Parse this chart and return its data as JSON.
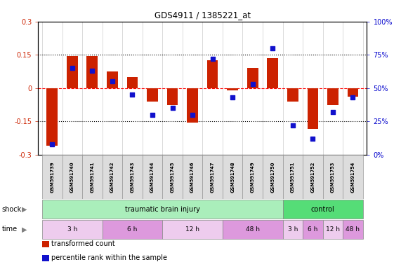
{
  "title": "GDS4911 / 1385221_at",
  "samples": [
    "GSM591739",
    "GSM591740",
    "GSM591741",
    "GSM591742",
    "GSM591743",
    "GSM591744",
    "GSM591745",
    "GSM591746",
    "GSM591747",
    "GSM591748",
    "GSM591749",
    "GSM591750",
    "GSM591751",
    "GSM591752",
    "GSM591753",
    "GSM591754"
  ],
  "bar_values": [
    -0.26,
    0.145,
    0.145,
    0.075,
    0.05,
    -0.06,
    -0.075,
    -0.155,
    0.125,
    -0.01,
    0.09,
    0.135,
    -0.06,
    -0.185,
    -0.075,
    -0.04
  ],
  "dot_values": [
    8,
    65,
    63,
    55,
    45,
    30,
    35,
    30,
    72,
    43,
    53,
    80,
    22,
    12,
    32,
    43
  ],
  "bar_color": "#cc2200",
  "dot_color": "#1111cc",
  "ylim_left": [
    -0.3,
    0.3
  ],
  "ylim_right": [
    0,
    100
  ],
  "yticks_left": [
    -0.3,
    -0.15,
    0.0,
    0.15,
    0.3
  ],
  "yticks_right": [
    0,
    25,
    50,
    75,
    100
  ],
  "ytick_labels_left": [
    "-0.3",
    "-0.15",
    "0",
    "0.15",
    "0.3"
  ],
  "ytick_labels_right": [
    "0%",
    "25%",
    "50%",
    "75%",
    "100%"
  ],
  "hlines": [
    -0.15,
    0.0,
    0.15
  ],
  "hline_styles": [
    "dotted",
    "dashed",
    "dotted"
  ],
  "hline_colors": [
    "black",
    "red",
    "black"
  ],
  "shock_label": "shock",
  "time_label": "time",
  "shock_groups": [
    {
      "label": "traumatic brain injury",
      "start": 0,
      "end": 11,
      "color": "#aaeebb"
    },
    {
      "label": "control",
      "start": 12,
      "end": 15,
      "color": "#55dd77"
    }
  ],
  "time_groups": [
    {
      "label": "3 h",
      "start": 0,
      "end": 2,
      "color": "#eeccee"
    },
    {
      "label": "6 h",
      "start": 3,
      "end": 5,
      "color": "#dd99dd"
    },
    {
      "label": "12 h",
      "start": 6,
      "end": 8,
      "color": "#eeccee"
    },
    {
      "label": "48 h",
      "start": 9,
      "end": 11,
      "color": "#dd99dd"
    },
    {
      "label": "3 h",
      "start": 12,
      "end": 12,
      "color": "#eeccee"
    },
    {
      "label": "6 h",
      "start": 13,
      "end": 13,
      "color": "#dd99dd"
    },
    {
      "label": "12 h",
      "start": 14,
      "end": 14,
      "color": "#eeccee"
    },
    {
      "label": "48 h",
      "start": 15,
      "end": 15,
      "color": "#dd99dd"
    }
  ],
  "legend_items": [
    {
      "label": "transformed count",
      "color": "#cc2200"
    },
    {
      "label": "percentile rank within the sample",
      "color": "#1111cc"
    }
  ],
  "grid_color": "#cccccc",
  "bg_color": "#ffffff",
  "bar_width": 0.55,
  "left_label_color": "#cc2200",
  "right_label_color": "#0000cc"
}
